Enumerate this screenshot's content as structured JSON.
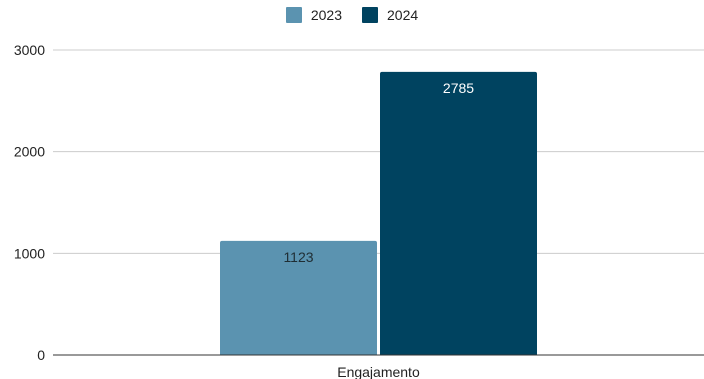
{
  "chart_data": {
    "type": "bar",
    "categories": [
      "Engajamento"
    ],
    "series": [
      {
        "name": "2023",
        "values": [
          1123
        ],
        "color": "#5b93b0",
        "label_color": "#1f2d33"
      },
      {
        "name": "2024",
        "values": [
          2785
        ],
        "color": "#004360",
        "label_color": "#ffffff"
      }
    ],
    "ylim": [
      0,
      3000
    ],
    "yticks": [
      "0",
      "1000",
      "2000",
      "3000"
    ],
    "ytick_values": [
      0,
      1000,
      2000,
      3000
    ],
    "grid": true,
    "legend_position": "top-center",
    "data_labels": [
      "1123",
      "2785"
    ]
  }
}
